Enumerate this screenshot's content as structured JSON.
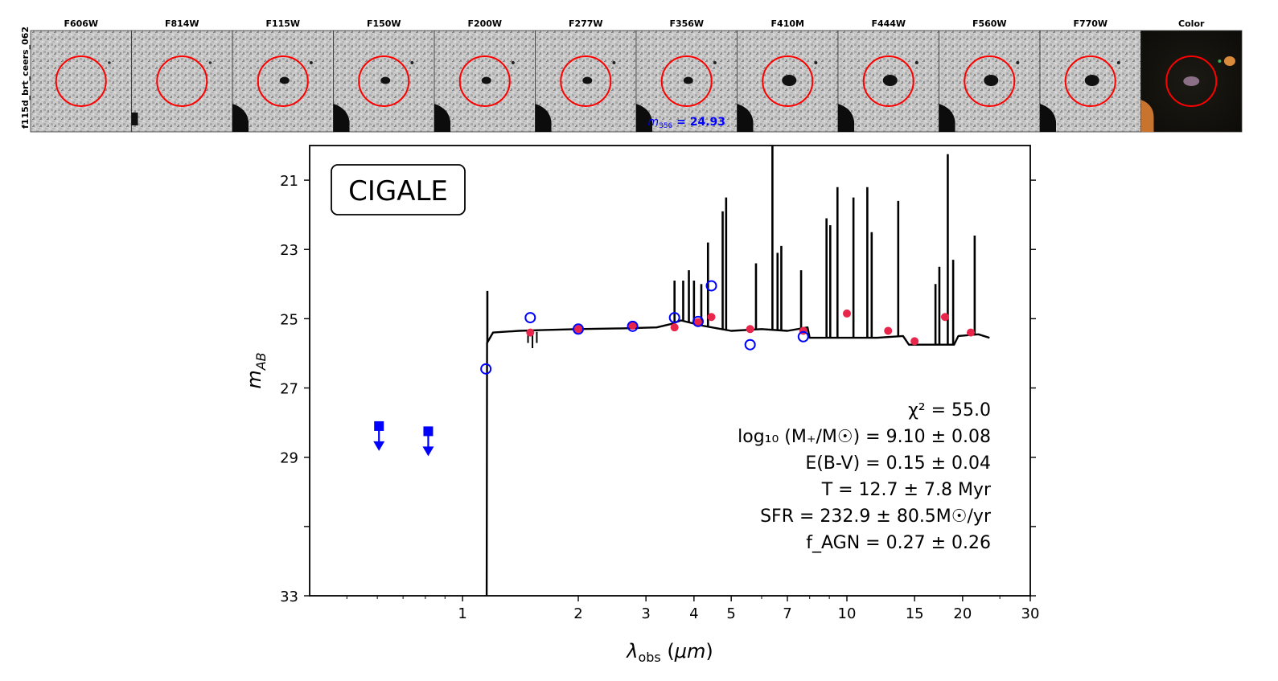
{
  "source_id": "f115d_brt_ceers_062",
  "stamps": {
    "filters": [
      "F606W",
      "F814W",
      "F115W",
      "F150W",
      "F200W",
      "F277W",
      "F356W",
      "F410M",
      "F444W",
      "F560W",
      "F770W",
      "Color"
    ],
    "magnitude_label": "m",
    "magnitude_sub": "356",
    "magnitude_value": "= 24.93",
    "colors": {
      "circle": "#ff0000",
      "mag_text": "#0000ff"
    }
  },
  "chart_data": {
    "type": "scatter",
    "title": "",
    "model_label": "CIGALE",
    "xlabel": "λ_obs (μm)",
    "ylabel": "m_AB",
    "xscale": "log",
    "xlim": [
      0.4,
      30
    ],
    "ylim": [
      33,
      20
    ],
    "xticks": [
      {
        "value": 1,
        "label": "1"
      },
      {
        "value": 2,
        "label": "2"
      },
      {
        "value": 3,
        "label": "3"
      },
      {
        "value": 4,
        "label": "4"
      },
      {
        "value": 5,
        "label": "5"
      },
      {
        "value": 7,
        "label": "7"
      },
      {
        "value": 10,
        "label": "10"
      },
      {
        "value": 15,
        "label": "15"
      },
      {
        "value": 20,
        "label": "20"
      },
      {
        "value": 30,
        "label": "30"
      }
    ],
    "yticks": [
      {
        "value": 21,
        "label": "21"
      },
      {
        "value": 23,
        "label": "23"
      },
      {
        "value": 25,
        "label": "25"
      },
      {
        "value": 27,
        "label": "27"
      },
      {
        "value": 29,
        "label": "29"
      },
      {
        "value": 31,
        "label": ""
      },
      {
        "value": 33,
        "label": "33"
      }
    ],
    "series": [
      {
        "name": "observed",
        "marker": "open-circle",
        "color": "#0000ff",
        "x": [
          1.15,
          1.5,
          2.0,
          2.77,
          3.56,
          4.1,
          4.44,
          5.6,
          7.7
        ],
        "y": [
          26.45,
          24.97,
          25.3,
          25.22,
          24.97,
          25.08,
          24.05,
          25.75,
          25.52
        ]
      },
      {
        "name": "upper limits",
        "marker": "square-down-arrow",
        "color": "#0000ff",
        "x": [
          0.606,
          0.814
        ],
        "y": [
          28.1,
          28.25
        ]
      },
      {
        "name": "model photometry",
        "marker": "filled-circle",
        "color": "#e8254a",
        "x": [
          1.5,
          2.0,
          2.77,
          3.56,
          4.1,
          4.44,
          5.6,
          7.7,
          10.0,
          12.8,
          15.0,
          18.0,
          21.0
        ],
        "y": [
          25.4,
          25.3,
          25.2,
          25.25,
          25.1,
          24.95,
          25.3,
          25.35,
          24.85,
          25.35,
          25.65,
          24.95,
          25.4
        ]
      },
      {
        "name": "model spectrum",
        "type": "line",
        "color": "#000000",
        "continuum": [
          [
            1.155,
            33.0
          ],
          [
            1.158,
            25.7
          ],
          [
            1.2,
            25.4
          ],
          [
            1.4,
            25.35
          ],
          [
            1.6,
            25.33
          ],
          [
            2.0,
            25.3
          ],
          [
            2.6,
            25.28
          ],
          [
            3.2,
            25.25
          ],
          [
            3.5,
            25.15
          ],
          [
            3.7,
            25.05
          ],
          [
            4.2,
            25.2
          ],
          [
            5.0,
            25.35
          ],
          [
            6.0,
            25.3
          ],
          [
            7.0,
            25.35
          ],
          [
            7.9,
            25.25
          ],
          [
            8.0,
            25.55
          ],
          [
            9.0,
            25.55
          ],
          [
            12.0,
            25.55
          ],
          [
            14.0,
            25.5
          ],
          [
            14.5,
            25.75
          ],
          [
            19.0,
            25.75
          ],
          [
            19.5,
            25.5
          ],
          [
            22.0,
            25.45
          ],
          [
            23.5,
            25.55
          ]
        ],
        "lines": [
          [
            1.16,
            24.2
          ],
          [
            3.56,
            23.9
          ],
          [
            3.75,
            23.9
          ],
          [
            3.88,
            23.6
          ],
          [
            4.0,
            23.9
          ],
          [
            4.18,
            24.0
          ],
          [
            4.35,
            22.8
          ],
          [
            4.75,
            21.9
          ],
          [
            4.85,
            21.5
          ],
          [
            5.8,
            23.4
          ],
          [
            6.4,
            20.0
          ],
          [
            6.6,
            23.1
          ],
          [
            6.75,
            22.9
          ],
          [
            7.6,
            23.6
          ],
          [
            8.85,
            22.1
          ],
          [
            9.05,
            22.3
          ],
          [
            9.45,
            21.2
          ],
          [
            10.4,
            21.5
          ],
          [
            11.3,
            21.2
          ],
          [
            11.6,
            22.5
          ],
          [
            13.6,
            21.6
          ],
          [
            17.0,
            24.0
          ],
          [
            17.4,
            23.5
          ],
          [
            18.3,
            20.25
          ],
          [
            18.9,
            23.3
          ],
          [
            21.5,
            22.6
          ]
        ]
      }
    ],
    "annotations": [
      {
        "label": "χ² = 55.0"
      },
      {
        "label": "log₁₀ (M₊/M☉) = 9.10 ± 0.08"
      },
      {
        "label": "E(B-V) = 0.15 ± 0.04"
      },
      {
        "label": "T = 12.7 ± 7.8 Myr"
      },
      {
        "label": "SFR = 232.9 ± 80.5M☉/yr"
      },
      {
        "label": "f_AGN = 0.27 ± 0.26"
      }
    ]
  }
}
